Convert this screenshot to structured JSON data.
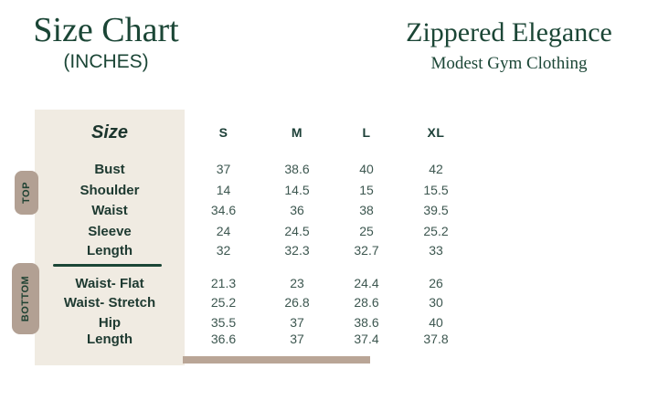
{
  "header_left": {
    "title": "Size Chart",
    "subtitle": "(INCHES)"
  },
  "header_right": {
    "brand": "Zippered Elegance",
    "tagline": "Modest Gym Clothing"
  },
  "chart_data": {
    "type": "table",
    "title": "Size Chart (INCHES) — Zippered Elegance Modest Gym Clothing",
    "corner_label": "Size",
    "columns": [
      "S",
      "M",
      "L",
      "XL"
    ],
    "sections": [
      {
        "group": "TOP",
        "rows": [
          {
            "label": "Bust",
            "values": [
              "37",
              "38.6",
              "40",
              "42"
            ]
          },
          {
            "label": "Shoulder",
            "values": [
              "14",
              "14.5",
              "15",
              "15.5"
            ]
          },
          {
            "label": "Waist",
            "values": [
              "34.6",
              "36",
              "38",
              "39.5"
            ]
          },
          {
            "label": "Sleeve",
            "values": [
              "24",
              "24.5",
              "25",
              "25.2"
            ]
          },
          {
            "label": "Length",
            "values": [
              "32",
              "32.3",
              "32.7",
              "33"
            ]
          }
        ]
      },
      {
        "group": "BOTTOM",
        "rows": [
          {
            "label": "Waist- Flat",
            "values": [
              "21.3",
              "23",
              "24.4",
              "26"
            ]
          },
          {
            "label": "Waist- Stretch",
            "values": [
              "25.2",
              "26.8",
              "28.6",
              "30"
            ]
          },
          {
            "label": "Hip",
            "values": [
              "35.5",
              "37",
              "38.6",
              "40"
            ]
          },
          {
            "label": "Length",
            "values": [
              "36.6",
              "37",
              "37.4",
              "37.8"
            ]
          }
        ]
      }
    ]
  },
  "colors": {
    "brand_green": "#1b4636",
    "cream": "#f0ebe2",
    "taupe": "#b2a093",
    "bar_taupe": "#b9a596",
    "label_text": "#1e3a31",
    "value_text": "#3d5750"
  }
}
